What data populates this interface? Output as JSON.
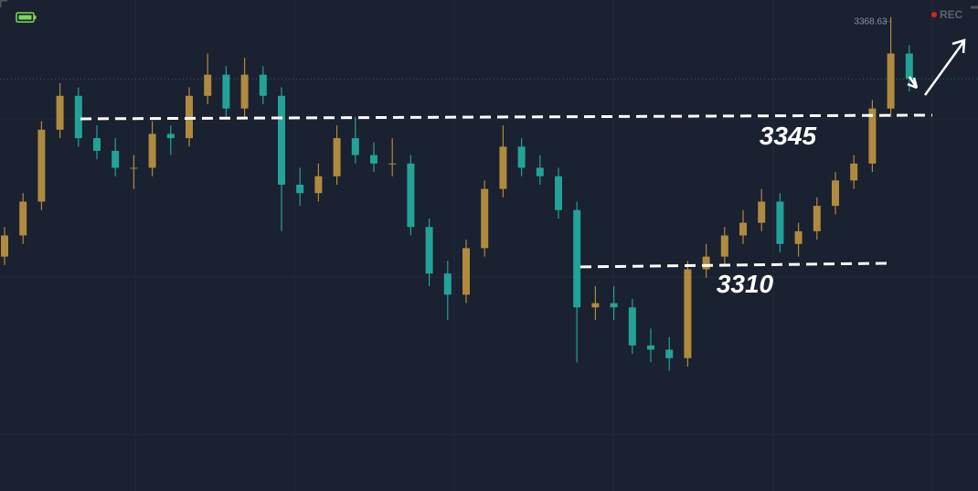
{
  "chart_data": {
    "type": "candlestick",
    "open": [
      3312,
      3317,
      3325,
      3342,
      3350,
      3340,
      3337,
      3333,
      3333,
      3341,
      3340,
      3350,
      3355,
      3347,
      3355,
      3350,
      3329,
      3327,
      3331,
      3340,
      3336,
      3334,
      3334,
      3319,
      3308,
      3303,
      3314,
      3328,
      3338,
      3333,
      3331,
      3323,
      3300,
      3301,
      3300,
      3291,
      3290,
      3288,
      3309,
      3312,
      3317,
      3320,
      3325,
      3315,
      3318,
      3324,
      3330,
      3334,
      3347,
      3360
    ],
    "high": [
      3319,
      3327,
      3344,
      3353,
      3352,
      3343,
      3340,
      3336,
      3344,
      3343,
      3352,
      3360,
      3357,
      3359,
      3357,
      3352,
      3333,
      3334,
      3343,
      3345,
      3339,
      3340,
      3336,
      3321,
      3311,
      3316,
      3330,
      3343,
      3340,
      3336,
      3333,
      3325,
      3305,
      3305,
      3302,
      3295,
      3293,
      3311,
      3315,
      3319,
      3323,
      3328,
      3327,
      3320,
      3326,
      3332,
      3336,
      3349,
      3368.63,
      3362
    ],
    "low": [
      3310,
      3315,
      3323,
      3340,
      3338,
      3335,
      3331,
      3328,
      3331,
      3336,
      3338,
      3348,
      3345,
      3345,
      3348,
      3318,
      3324,
      3325,
      3329,
      3334,
      3332,
      3331,
      3317,
      3305,
      3297,
      3301,
      3312,
      3326,
      3331,
      3329,
      3321,
      3287,
      3297,
      3297,
      3289,
      3287,
      3285,
      3286,
      3307,
      3310,
      3315,
      3318,
      3313,
      3312,
      3316,
      3322,
      3328,
      3332,
      3345,
      3351
    ],
    "close": [
      3317,
      3325,
      3342,
      3350,
      3340,
      3337,
      3333,
      3333,
      3341,
      3340,
      3350,
      3355,
      3347,
      3355,
      3350,
      3329,
      3327,
      3331,
      3340,
      3336,
      3334,
      3334,
      3319,
      3308,
      3303,
      3314,
      3328,
      3338,
      3333,
      3331,
      3323,
      3300,
      3301,
      3300,
      3291,
      3290,
      3288,
      3309,
      3312,
      3317,
      3320,
      3325,
      3315,
      3318,
      3324,
      3330,
      3334,
      3347,
      3360,
      3354
    ],
    "up_color": "#b08a3e",
    "down_color": "#23a397",
    "ylim": [
      3256.6,
      3372.65
    ],
    "levels": [
      {
        "value": 3345,
        "label": "3345"
      },
      {
        "value": 3310,
        "label": "3310"
      }
    ],
    "status": "REC"
  }
}
